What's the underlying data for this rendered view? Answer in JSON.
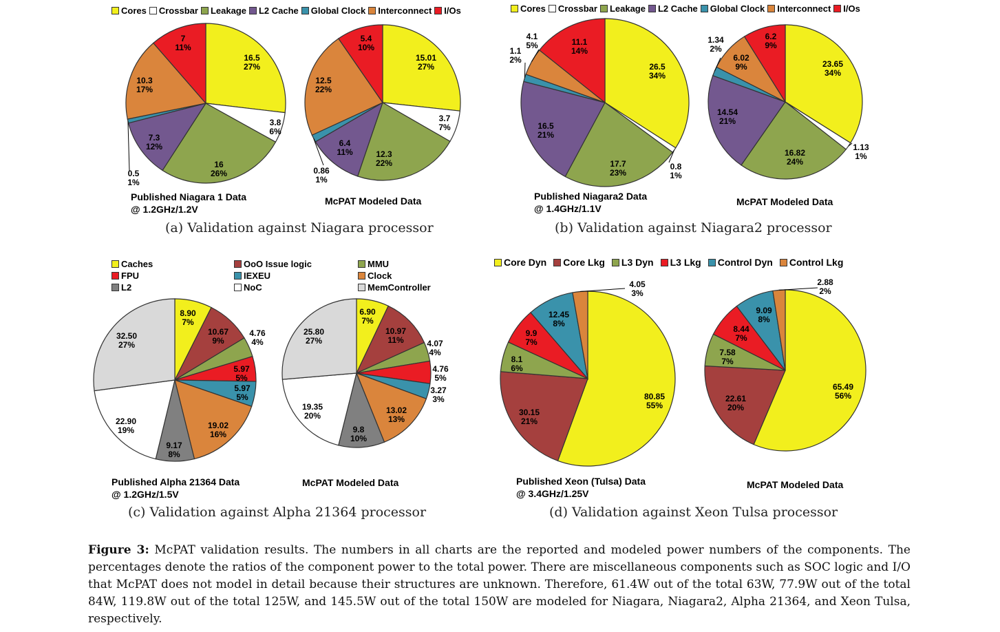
{
  "colors": {
    "Cores": "#f2ef1d",
    "Crossbar": "#ffffff",
    "Leakage": "#8ea54e",
    "L2 Cache": "#73588f",
    "Global Clock": "#3a92ab",
    "Interconnect": "#da853c",
    "I/Os": "#ea1c24",
    "Caches": "#f2ef1d",
    "OoO Issue logic": "#a5403e",
    "MMU": "#8ea54e",
    "FPU": "#ea1c24",
    "IEXEU": "#3a92ab",
    "Clock": "#da853c",
    "L2": "#808080",
    "NoC": "#ffffff",
    "MemController": "#d9d9d9",
    "Core Dyn": "#f2ef1d",
    "Core Lkg": "#a5403e",
    "L3 Dyn": "#8ea54e",
    "L3 Lkg": "#ea1c24",
    "Control Dyn": "#3a92ab",
    "Control Lkg": "#da853c"
  },
  "legends": {
    "a": [
      "Cores",
      "Crossbar",
      "Leakage",
      "L2 Cache",
      "Global Clock",
      "Interconnect",
      "I/Os"
    ],
    "b": [
      "Cores",
      "Crossbar",
      "Leakage",
      "L2 Cache",
      "Global Clock",
      "Interconnect",
      "I/Os"
    ],
    "c": [
      "Caches",
      "OoO Issue logic",
      "MMU",
      "FPU",
      "IEXEU",
      "Clock",
      "L2",
      "NoC",
      "MemController"
    ],
    "d": [
      "Core Dyn",
      "Core Lkg",
      "L3 Dyn",
      "L3 Lkg",
      "Control Dyn",
      "Control Lkg"
    ]
  },
  "chart_data": [
    {
      "type": "pie",
      "panel": "a",
      "title": "Published Niagara 1 Data @ 1.2GHz/1.2V",
      "title_lines": [
        "Published Niagara 1 Data",
        "@ 1.2GHz/1.2V"
      ],
      "slices": [
        {
          "name": "Cores",
          "value": 16.5,
          "pct": "27%"
        },
        {
          "name": "Crossbar",
          "value": 3.8,
          "pct": "6%"
        },
        {
          "name": "Leakage",
          "value": 16,
          "pct": "26%"
        },
        {
          "name": "L2 Cache",
          "value": 7.3,
          "pct": "12%"
        },
        {
          "name": "Global Clock",
          "value": 0.5,
          "pct": "1%"
        },
        {
          "name": "Interconnect",
          "value": 10.3,
          "pct": "17%"
        },
        {
          "name": "I/Os",
          "value": 7,
          "pct": "11%"
        }
      ]
    },
    {
      "type": "pie",
      "panel": "a",
      "title": "McPAT Modeled Data",
      "title_lines": [
        "McPAT Modeled Data"
      ],
      "slices": [
        {
          "name": "Cores",
          "value": 15.01,
          "pct": "27%"
        },
        {
          "name": "Crossbar",
          "value": 3.7,
          "pct": "7%"
        },
        {
          "name": "Leakage",
          "value": 12.3,
          "pct": "22%"
        },
        {
          "name": "L2 Cache",
          "value": 6.4,
          "pct": "11%"
        },
        {
          "name": "Global Clock",
          "value": 0.86,
          "pct": "1%"
        },
        {
          "name": "Interconnect",
          "value": 12.5,
          "pct": "22%"
        },
        {
          "name": "I/Os",
          "value": 5.4,
          "pct": "10%"
        }
      ]
    },
    {
      "type": "pie",
      "panel": "b",
      "title": "Published Niagara2 Data @ 1.4GHz/1.1V",
      "title_lines": [
        "Published Niagara2 Data",
        "@ 1.4GHz/1.1V"
      ],
      "slices": [
        {
          "name": "Cores",
          "value": 26.5,
          "pct": "34%"
        },
        {
          "name": "Crossbar",
          "value": 0.8,
          "pct": "1%"
        },
        {
          "name": "Leakage",
          "value": 17.7,
          "pct": "23%"
        },
        {
          "name": "L2 Cache",
          "value": 16.5,
          "pct": "21%"
        },
        {
          "name": "Global Clock",
          "value": 1.1,
          "pct": "2%"
        },
        {
          "name": "Interconnect",
          "value": 4.1,
          "pct": "5%"
        },
        {
          "name": "I/Os",
          "value": 11.1,
          "pct": "14%"
        }
      ]
    },
    {
      "type": "pie",
      "panel": "b",
      "title": "McPAT Modeled Data",
      "title_lines": [
        "McPAT Modeled Data"
      ],
      "slices": [
        {
          "name": "Cores",
          "value": 23.65,
          "pct": "34%"
        },
        {
          "name": "Crossbar",
          "value": 1.13,
          "pct": "1%"
        },
        {
          "name": "Leakage",
          "value": 16.82,
          "pct": "24%"
        },
        {
          "name": "L2 Cache",
          "value": 14.54,
          "pct": "21%"
        },
        {
          "name": "Global Clock",
          "value": 1.34,
          "pct": "2%"
        },
        {
          "name": "Interconnect",
          "value": 6.02,
          "pct": "9%"
        },
        {
          "name": "I/Os",
          "value": 6.2,
          "pct": "9%"
        }
      ]
    },
    {
      "type": "pie",
      "panel": "c",
      "title": "Published Alpha 21364 Data @ 1.2GHz/1.5V",
      "title_lines": [
        "Published Alpha 21364 Data",
        "@ 1.2GHz/1.5V"
      ],
      "slices": [
        {
          "name": "Caches",
          "value": 8.9,
          "pct": "7%"
        },
        {
          "name": "OoO Issue logic",
          "value": 10.67,
          "pct": "9%"
        },
        {
          "name": "MMU",
          "value": 4.76,
          "pct": "4%"
        },
        {
          "name": "FPU",
          "value": 5.97,
          "pct": "5%"
        },
        {
          "name": "IEXEU",
          "value": 5.97,
          "pct": "5%"
        },
        {
          "name": "Clock",
          "value": 19.02,
          "pct": "16%"
        },
        {
          "name": "L2",
          "value": 9.17,
          "pct": "8%"
        },
        {
          "name": "NoC",
          "value": 22.9,
          "pct": "19%"
        },
        {
          "name": "MemController",
          "value": 32.5,
          "pct": "27%"
        }
      ]
    },
    {
      "type": "pie",
      "panel": "c",
      "title": "McPAT Modeled Data",
      "title_lines": [
        "McPAT Modeled Data"
      ],
      "slices": [
        {
          "name": "Caches",
          "value": 6.9,
          "pct": "7%"
        },
        {
          "name": "OoO Issue logic",
          "value": 10.97,
          "pct": "11%"
        },
        {
          "name": "MMU",
          "value": 4.07,
          "pct": "4%"
        },
        {
          "name": "FPU",
          "value": 4.76,
          "pct": "5%"
        },
        {
          "name": "IEXEU",
          "value": 3.27,
          "pct": "3%"
        },
        {
          "name": "Clock",
          "value": 13.02,
          "pct": "13%"
        },
        {
          "name": "L2",
          "value": 9.8,
          "pct": "10%"
        },
        {
          "name": "NoC",
          "value": 19.35,
          "pct": "20%"
        },
        {
          "name": "MemController",
          "value": 25.8,
          "pct": "27%"
        }
      ]
    },
    {
      "type": "pie",
      "panel": "d",
      "title": "Published Xeon (Tulsa) Data @ 3.4GHz/1.25V",
      "title_lines": [
        "Published Xeon (Tulsa) Data",
        "@ 3.4GHz/1.25V"
      ],
      "slices": [
        {
          "name": "Core Dyn",
          "value": 80.85,
          "pct": "55%"
        },
        {
          "name": "Core Lkg",
          "value": 30.15,
          "pct": "21%"
        },
        {
          "name": "L3 Dyn",
          "value": 8.1,
          "pct": "6%"
        },
        {
          "name": "L3 Lkg",
          "value": 9.9,
          "pct": "7%"
        },
        {
          "name": "Control Dyn",
          "value": 12.45,
          "pct": "8%"
        },
        {
          "name": "Control Lkg",
          "value": 4.05,
          "pct": "3%"
        }
      ]
    },
    {
      "type": "pie",
      "panel": "d",
      "title": "McPAT Modeled Data",
      "title_lines": [
        "McPAT Modeled Data"
      ],
      "slices": [
        {
          "name": "Core Dyn",
          "value": 65.49,
          "pct": "56%"
        },
        {
          "name": "Core Lkg",
          "value": 22.61,
          "pct": "20%"
        },
        {
          "name": "L3 Dyn",
          "value": 7.58,
          "pct": "7%"
        },
        {
          "name": "L3 Lkg",
          "value": 8.44,
          "pct": "7%"
        },
        {
          "name": "Control Dyn",
          "value": 9.09,
          "pct": "8%"
        },
        {
          "name": "Control Lkg",
          "value": 2.88,
          "pct": "2%"
        }
      ]
    }
  ],
  "captions": {
    "a": "(a) Validation against Niagara processor",
    "b": "(b) Validation against Niagara2 processor",
    "c": "(c) Validation against Alpha 21364 processor",
    "d": "(d) Validation against Xeon Tulsa processor"
  },
  "figure_caption": {
    "label": "Figure 3:",
    "text": "McPAT validation results. The numbers in all charts are the reported and modeled power numbers of the components. The percentages denote the ratios of the component power to the total power. There are miscellaneous components such as SOC logic and I/O that McPAT does not model in detail because their structures are unknown. Therefore, 61.4W out of the total 63W, 77.9W out of the total 84W, 119.8W out of the total 125W, and 145.5W out of the total 150W are modeled for Niagara, Niagara2, Alpha 21364, and Xeon Tulsa, respectively."
  }
}
